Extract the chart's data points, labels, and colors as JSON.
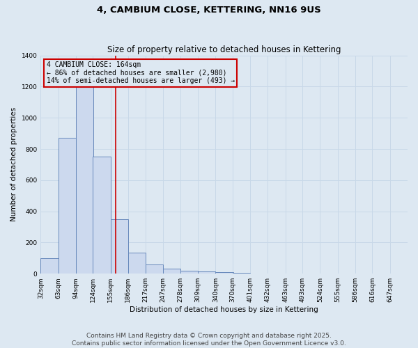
{
  "title": "4, CAMBIUM CLOSE, KETTERING, NN16 9US",
  "subtitle": "Size of property relative to detached houses in Kettering",
  "xlabel": "Distribution of detached houses by size in Kettering",
  "ylabel": "Number of detached properties",
  "footer_line1": "Contains HM Land Registry data © Crown copyright and database right 2025.",
  "footer_line2": "Contains public sector information licensed under the Open Government Licence v3.0.",
  "bar_left_edges": [
    32,
    63,
    94,
    124,
    155,
    186,
    217,
    247,
    278,
    309,
    340,
    370,
    401,
    432,
    463,
    493,
    524,
    555,
    586,
    616
  ],
  "bar_heights": [
    100,
    870,
    1230,
    750,
    350,
    135,
    60,
    30,
    20,
    15,
    10,
    5,
    0,
    0,
    0,
    0,
    0,
    0,
    0,
    0
  ],
  "bin_width": 31,
  "bar_facecolor": "#ccd9ee",
  "bar_edgecolor": "#6688bb",
  "grid_color": "#c8d8e8",
  "bg_color": "#dde8f2",
  "red_line_x": 164,
  "annotation_line1": "4 CAMBIUM CLOSE: 164sqm",
  "annotation_line2": "← 86% of detached houses are smaller (2,980)",
  "annotation_line3": "14% of semi-detached houses are larger (493) →",
  "annotation_box_color": "#cc0000",
  "ylim": [
    0,
    1400
  ],
  "yticks": [
    0,
    200,
    400,
    600,
    800,
    1000,
    1200,
    1400
  ],
  "xtick_labels": [
    "32sqm",
    "63sqm",
    "94sqm",
    "124sqm",
    "155sqm",
    "186sqm",
    "217sqm",
    "247sqm",
    "278sqm",
    "309sqm",
    "340sqm",
    "370sqm",
    "401sqm",
    "432sqm",
    "463sqm",
    "493sqm",
    "524sqm",
    "555sqm",
    "586sqm",
    "616sqm",
    "647sqm"
  ],
  "title_fontsize": 9.5,
  "subtitle_fontsize": 8.5,
  "axis_label_fontsize": 7.5,
  "tick_fontsize": 6.5,
  "annotation_fontsize": 7,
  "footer_fontsize": 6.5,
  "xlim_left": 32,
  "xlim_right": 678
}
